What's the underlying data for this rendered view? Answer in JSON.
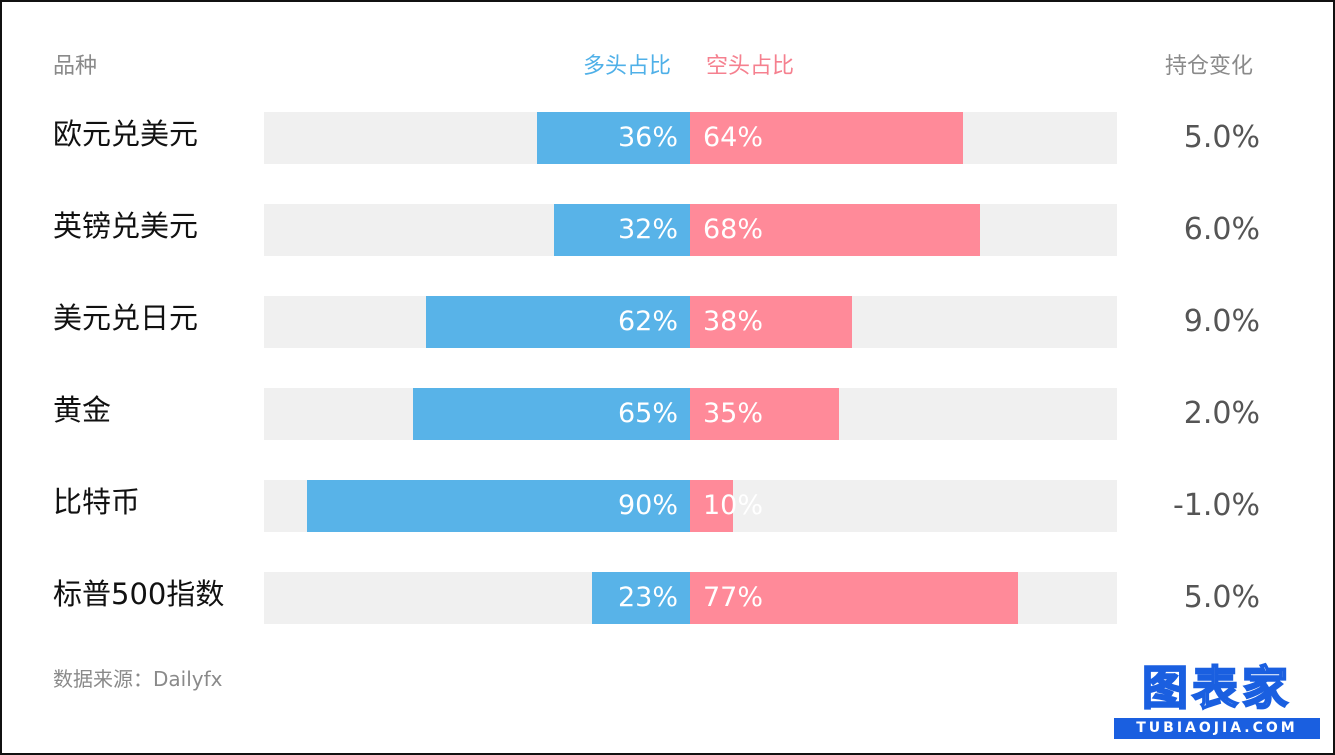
{
  "headers": {
    "category": "品种",
    "long": "多头占比",
    "short": "空头占比",
    "change": "持仓变化"
  },
  "colors": {
    "long": "#58b3e8",
    "short": "#ff8a99",
    "track": "#f0f0f0"
  },
  "source": "数据来源：Dailyfx",
  "logo": {
    "main": "图表家",
    "sub": "TUBIAOJIA.COM"
  },
  "chart_data": {
    "type": "bar",
    "categories": [
      "欧元兑美元",
      "英镑兑美元",
      "美元兑日元",
      "黄金",
      "比特币",
      "标普500指数"
    ],
    "series": [
      {
        "name": "多头占比",
        "values": [
          36,
          32,
          62,
          65,
          90,
          23
        ]
      },
      {
        "name": "空头占比",
        "values": [
          64,
          68,
          38,
          35,
          10,
          77
        ]
      }
    ],
    "value_labels": {
      "long": [
        "36%",
        "32%",
        "62%",
        "65%",
        "90%",
        "23%"
      ],
      "short": [
        "64%",
        "68%",
        "38%",
        "35%",
        "10%",
        "77%"
      ]
    },
    "position_change": [
      "5.0%",
      "6.0%",
      "9.0%",
      "2.0%",
      "-1.0%",
      "5.0%"
    ],
    "xlim": [
      -100,
      100
    ],
    "grid": false
  }
}
